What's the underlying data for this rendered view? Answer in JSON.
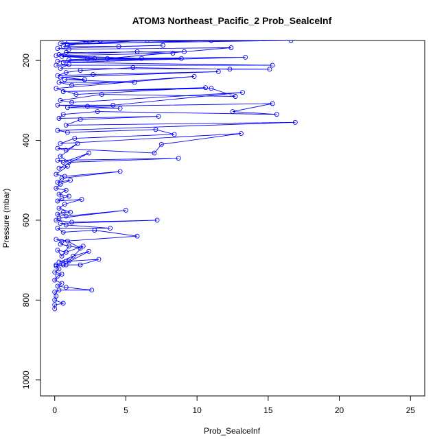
{
  "chart_data": {
    "type": "line",
    "title": "ATOM3 Northeast_Pacific_2 Prob_SealceInf",
    "xlabel": "Prob_SealceInf",
    "ylabel": "Pressure (mbar)",
    "xlim": [
      -1,
      26
    ],
    "ylim": [
      1040,
      150
    ],
    "y_inverted": true,
    "grid": false,
    "x_ticks": [
      0,
      5,
      10,
      15,
      20,
      25
    ],
    "y_ticks": [
      200,
      400,
      600,
      800,
      1000
    ],
    "series": [
      {
        "color": "#0000ff",
        "marker": "open-circle",
        "points": [
          [
            0,
            822
          ],
          [
            0,
            812
          ],
          [
            0.6,
            808
          ],
          [
            0,
            800
          ],
          [
            0.1,
            790
          ],
          [
            0,
            780
          ],
          [
            0.3,
            775
          ],
          [
            2.6,
            775
          ],
          [
            0.8,
            768
          ],
          [
            0.2,
            765
          ],
          [
            0.5,
            758
          ],
          [
            0,
            750
          ],
          [
            0.2,
            740
          ],
          [
            0.5,
            735
          ],
          [
            0,
            730
          ],
          [
            0.3,
            722
          ],
          [
            0.1,
            715
          ],
          [
            0.8,
            712
          ],
          [
            1.8,
            712
          ],
          [
            3.1,
            698
          ],
          [
            0.8,
            703
          ],
          [
            0.1,
            712
          ],
          [
            0.6,
            712
          ],
          [
            2.4,
            678
          ],
          [
            1.3,
            690
          ],
          [
            0.3,
            705
          ],
          [
            1.0,
            702
          ],
          [
            2.0,
            665
          ],
          [
            0.8,
            680
          ],
          [
            0.2,
            675
          ],
          [
            0.5,
            690
          ],
          [
            1.0,
            665
          ],
          [
            0.4,
            660
          ],
          [
            1.8,
            670
          ],
          [
            0.9,
            652
          ],
          [
            0.1,
            648
          ],
          [
            0.5,
            653
          ],
          [
            5.8,
            640
          ],
          [
            2.8,
            625
          ],
          [
            0.6,
            630
          ],
          [
            0.2,
            620
          ],
          [
            3.9,
            620
          ],
          [
            0.8,
            612
          ],
          [
            0.4,
            608
          ],
          [
            7.2,
            600
          ],
          [
            1.2,
            605
          ],
          [
            0.1,
            600
          ],
          [
            0.3,
            595
          ],
          [
            5.0,
            575
          ],
          [
            0.8,
            590
          ],
          [
            0.2,
            585
          ],
          [
            0.6,
            580
          ],
          [
            1.1,
            580
          ],
          [
            0.3,
            570
          ],
          [
            0.7,
            560
          ],
          [
            1.9,
            548
          ],
          [
            0.2,
            552
          ],
          [
            0.5,
            545
          ],
          [
            1.0,
            540
          ],
          [
            0.3,
            535
          ],
          [
            0.8,
            525
          ],
          [
            0.1,
            520
          ],
          [
            0.4,
            510
          ],
          [
            1.1,
            500
          ],
          [
            0.2,
            505
          ],
          [
            0.5,
            495
          ],
          [
            4.6,
            478
          ],
          [
            0.7,
            490
          ],
          [
            0.1,
            485
          ],
          [
            0.9,
            465
          ],
          [
            0.3,
            470
          ],
          [
            2.4,
            432
          ],
          [
            0.6,
            455
          ],
          [
            0.2,
            450
          ],
          [
            8.7,
            445
          ],
          [
            1.0,
            455
          ],
          [
            0.4,
            440
          ],
          [
            1.6,
            408
          ],
          [
            0.8,
            425
          ],
          [
            0.2,
            420
          ],
          [
            7.0,
            432
          ],
          [
            7.5,
            410
          ],
          [
            13.1,
            383
          ],
          [
            0.4,
            408
          ],
          [
            1.4,
            395
          ],
          [
            8.4,
            385
          ],
          [
            7.1,
            373
          ],
          [
            0.9,
            380
          ],
          [
            0.2,
            375
          ],
          [
            16.9,
            355
          ],
          [
            0.8,
            362
          ],
          [
            1.8,
            348
          ],
          [
            7.3,
            340
          ],
          [
            0.3,
            345
          ],
          [
            0.6,
            335
          ],
          [
            3.0,
            328
          ],
          [
            15.6,
            335
          ],
          [
            12.5,
            328
          ],
          [
            15.3,
            308
          ],
          [
            2.3,
            315
          ],
          [
            0.9,
            318
          ],
          [
            4.6,
            320
          ],
          [
            0.2,
            312
          ],
          [
            4.1,
            312
          ],
          [
            13.2,
            280
          ],
          [
            1.2,
            305
          ],
          [
            0.4,
            300
          ],
          [
            3.3,
            285
          ],
          [
            12.7,
            290
          ],
          [
            11.0,
            270
          ],
          [
            0.6,
            278
          ],
          [
            10.6,
            268
          ],
          [
            1.5,
            285
          ],
          [
            0.1,
            270
          ],
          [
            9.8,
            240
          ],
          [
            1.2,
            262
          ],
          [
            0.3,
            255
          ],
          [
            5.6,
            255
          ],
          [
            0.7,
            248
          ],
          [
            2.1,
            248
          ],
          [
            0.4,
            242
          ],
          [
            11.5,
            228
          ],
          [
            2.7,
            235
          ],
          [
            0.2,
            238
          ],
          [
            0.8,
            230
          ],
          [
            1.8,
            225
          ],
          [
            5.5,
            218
          ],
          [
            12.3,
            222
          ],
          [
            15.1,
            222
          ],
          [
            0.4,
            220
          ],
          [
            1.0,
            210
          ],
          [
            0.1,
            212
          ],
          [
            15.3,
            212
          ],
          [
            0.6,
            205
          ],
          [
            13.4,
            192
          ],
          [
            2.3,
            196
          ],
          [
            0.2,
            202
          ],
          [
            8.9,
            195
          ],
          [
            1.0,
            198
          ],
          [
            2.8,
            195
          ],
          [
            0.5,
            190
          ],
          [
            6.1,
            195
          ],
          [
            0.1,
            188
          ],
          [
            8.3,
            182
          ],
          [
            5.8,
            178
          ],
          [
            0.3,
            185
          ],
          [
            0.8,
            180
          ],
          [
            9.1,
            178
          ],
          [
            3.7,
            195
          ],
          [
            12.4,
            168
          ],
          [
            1.0,
            172
          ],
          [
            0.2,
            170
          ],
          [
            7.6,
            162
          ],
          [
            4.5,
            165
          ],
          [
            0.6,
            165
          ],
          [
            3.2,
            150
          ],
          [
            0.4,
            158
          ],
          [
            16.6,
            150
          ],
          [
            2.2,
            152
          ],
          [
            0.7,
            150
          ],
          [
            6.5,
            150
          ],
          [
            0.9,
            160
          ],
          [
            11.0,
            150
          ]
        ]
      }
    ]
  }
}
